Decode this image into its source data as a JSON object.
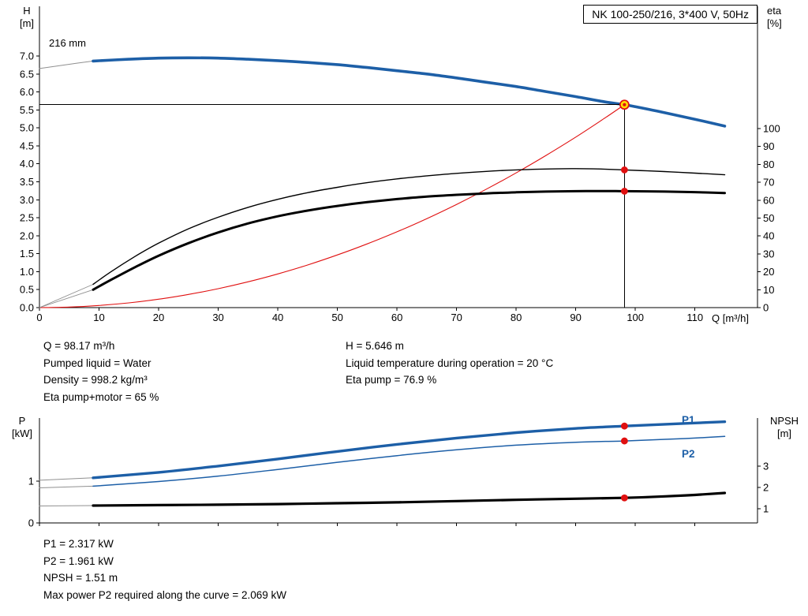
{
  "title_box": "NK 100-250/216, 3*400 V, 50Hz",
  "colors": {
    "blue": "#1d5fa7",
    "black": "#000000",
    "red": "#e01010",
    "gray": "#909090",
    "yellow": "#ffe000"
  },
  "results": {
    "col1": [
      "Q = 98.17 m³/h",
      "Pumped liquid = Water",
      "Density = 998.2 kg/m³",
      "Eta pump+motor = 65 %"
    ],
    "col2": [
      "H = 5.646 m",
      "Liquid temperature during operation = 20 °C",
      "Eta pump = 76.9 %"
    ],
    "power": [
      "P1 = 2.317 kW",
      "P2 = 1.961 kW",
      "NPSH = 1.51 m",
      "Max power P2 required along the curve = 2.069 kW"
    ]
  },
  "chart_data": [
    {
      "id": "head",
      "type": "line",
      "name": "hq-eta-chart",
      "impeller_label": "216 mm",
      "x_axis": {
        "label": "Q [m³/h]",
        "min": 0,
        "max": 120.5,
        "ticks": {
          "values": [
            0,
            10,
            20,
            30,
            40,
            50,
            60,
            70,
            80,
            90,
            100,
            110
          ],
          "labels": [
            "0",
            "10",
            "20",
            "30",
            "40",
            "50",
            "60",
            "70",
            "80",
            "90",
            "100",
            "110"
          ]
        }
      },
      "y_left": {
        "label": "H [m]",
        "label_lines": [
          "H",
          "[m]"
        ],
        "min": 0,
        "max": 7,
        "ticks": {
          "values": [
            7,
            6.5,
            6,
            5.5,
            5,
            4.5,
            4,
            3.5,
            3,
            2.5,
            2,
            1.5,
            1,
            0.5,
            0
          ],
          "labels": [
            "7.0",
            "6.5",
            "6.0",
            "5.5",
            "5.0",
            "4.5",
            "4.0",
            "3.5",
            "3.0",
            "2.5",
            "2.0",
            "1.5",
            "1.0",
            "0.5",
            "0.0"
          ]
        }
      },
      "y_right": {
        "label": "eta [%]",
        "label_lines": [
          "eta",
          "[%]"
        ],
        "min": 0,
        "max": 100,
        "ticks": {
          "values": [
            100,
            90,
            80,
            70,
            60,
            50,
            40,
            30,
            20,
            10,
            0
          ],
          "labels": [
            "100",
            "90",
            "80",
            "70",
            "60",
            "50",
            "40",
            "30",
            "20",
            "10",
            "0"
          ]
        }
      },
      "series": [
        {
          "name": "pump-curve-lead",
          "axis": "H",
          "color": "gray",
          "width": 1,
          "points": [
            [
              0,
              6.65
            ],
            [
              5,
              6.77
            ],
            [
              9,
              6.86
            ]
          ]
        },
        {
          "name": "system-curve",
          "axis": "H",
          "color": "red",
          "width": 1.1,
          "points": [
            [
              0,
              0
            ],
            [
              5,
              0.015
            ],
            [
              10,
              0.059
            ],
            [
              15,
              0.132
            ],
            [
              20,
              0.234
            ],
            [
              25,
              0.366
            ],
            [
              30,
              0.527
            ],
            [
              35,
              0.718
            ],
            [
              40,
              0.937
            ],
            [
              45,
              1.186
            ],
            [
              50,
              1.465
            ],
            [
              55,
              1.772
            ],
            [
              60,
              2.109
            ],
            [
              65,
              2.475
            ],
            [
              70,
              2.871
            ],
            [
              75,
              3.295
            ],
            [
              80,
              3.749
            ],
            [
              85,
              4.233
            ],
            [
              90,
              4.745
            ],
            [
              95,
              5.287
            ],
            [
              98.17,
              5.646
            ]
          ]
        },
        {
          "name": "eta-pump-lead",
          "axis": "eta",
          "color": "gray",
          "width": 0.9,
          "points": [
            [
              0,
              0
            ],
            [
              9,
              13
            ]
          ]
        },
        {
          "name": "eta-pump-motor-lead",
          "axis": "eta",
          "color": "gray",
          "width": 0.9,
          "points": [
            [
              0,
              0
            ],
            [
              9,
              10
            ]
          ]
        },
        {
          "name": "eta-pump-curve",
          "axis": "eta",
          "color": "black",
          "width": 1.4,
          "points": [
            [
              9,
              13
            ],
            [
              12,
              20
            ],
            [
              16,
              28.5
            ],
            [
              20,
              36
            ],
            [
              25,
              44
            ],
            [
              30,
              50.5
            ],
            [
              35,
              56
            ],
            [
              40,
              60.5
            ],
            [
              45,
              64.2
            ],
            [
              50,
              67.2
            ],
            [
              55,
              69.8
            ],
            [
              60,
              71.9
            ],
            [
              65,
              73.6
            ],
            [
              70,
              75.0
            ],
            [
              75,
              76.1
            ],
            [
              80,
              76.9
            ],
            [
              85,
              77.4
            ],
            [
              90,
              77.6
            ],
            [
              93,
              77.5
            ],
            [
              96,
              77.2
            ],
            [
              98.17,
              76.9
            ],
            [
              102,
              76.4
            ],
            [
              106,
              75.8
            ],
            [
              110,
              75.1
            ],
            [
              115,
              74.2
            ]
          ]
        },
        {
          "name": "eta-pump-motor-curve",
          "axis": "eta",
          "color": "black",
          "width": 3,
          "points": [
            [
              9,
              10
            ],
            [
              12,
              15.5
            ],
            [
              16,
              22.5
            ],
            [
              20,
              29
            ],
            [
              25,
              36
            ],
            [
              30,
              42
            ],
            [
              35,
              47
            ],
            [
              40,
              51
            ],
            [
              45,
              54.2
            ],
            [
              50,
              56.8
            ],
            [
              55,
              58.9
            ],
            [
              60,
              60.6
            ],
            [
              65,
              62.0
            ],
            [
              70,
              63.0
            ],
            [
              75,
              63.8
            ],
            [
              80,
              64.4
            ],
            [
              85,
              64.8
            ],
            [
              90,
              65.0
            ],
            [
              95,
              65.1
            ],
            [
              98.17,
              65.0
            ],
            [
              105,
              64.8
            ],
            [
              110,
              64.5
            ],
            [
              115,
              64.0
            ]
          ]
        },
        {
          "name": "pump-curve-216mm",
          "axis": "H",
          "color": "blue",
          "width": 3.6,
          "points": [
            [
              9,
              6.86
            ],
            [
              15,
              6.91
            ],
            [
              20,
              6.94
            ],
            [
              25,
              6.95
            ],
            [
              30,
              6.94
            ],
            [
              35,
              6.91
            ],
            [
              40,
              6.87
            ],
            [
              45,
              6.82
            ],
            [
              50,
              6.76
            ],
            [
              55,
              6.68
            ],
            [
              60,
              6.59
            ],
            [
              65,
              6.5
            ],
            [
              70,
              6.39
            ],
            [
              75,
              6.27
            ],
            [
              80,
              6.15
            ],
            [
              85,
              6.01
            ],
            [
              90,
              5.87
            ],
            [
              95,
              5.72
            ],
            [
              98.17,
              5.646
            ],
            [
              100,
              5.59
            ],
            [
              105,
              5.42
            ],
            [
              110,
              5.24
            ],
            [
              115,
              5.05
            ]
          ]
        }
      ],
      "operating_point": {
        "q": 98.17,
        "axis": "H",
        "v": 5.646
      },
      "dots": [
        {
          "q": 98.17,
          "axis": "eta",
          "v": 76.9
        },
        {
          "q": 98.17,
          "axis": "eta",
          "v": 65.0
        }
      ]
    },
    {
      "id": "power",
      "type": "line",
      "name": "power-npsh-chart",
      "x_axis": {
        "label": "",
        "min": 0,
        "max": 120.5,
        "ticks": {
          "values": [
            0,
            10,
            20,
            30,
            40,
            50,
            60,
            70,
            80,
            90,
            100,
            110
          ],
          "labels": []
        }
      },
      "y_left": {
        "label": "P [kW]",
        "label_lines": [
          "P",
          "[kW]"
        ],
        "ticks": {
          "values": [
            1,
            0
          ],
          "labels": [
            "1",
            "0"
          ]
        }
      },
      "y_right": {
        "label": "NPSH [m]",
        "label_lines": [
          "NPSH",
          "[m]"
        ],
        "ticks": {
          "values": [
            3,
            2,
            1
          ],
          "labels": [
            "3",
            "2",
            "1"
          ]
        }
      },
      "series": [
        {
          "name": "p1-lead",
          "axis": "P",
          "color": "gray",
          "width": 1,
          "points": [
            [
              0,
              1.02
            ],
            [
              9,
              1.08
            ]
          ]
        },
        {
          "name": "p2-lead",
          "axis": "P",
          "color": "gray",
          "width": 1,
          "points": [
            [
              0,
              0.84
            ],
            [
              9,
              0.88
            ]
          ]
        },
        {
          "name": "npsh-lead",
          "axis": "NPSH",
          "color": "gray",
          "width": 1,
          "points": [
            [
              0,
              1.13
            ],
            [
              9,
              1.15
            ]
          ]
        },
        {
          "name": "p2-curve",
          "axis": "P",
          "color": "blue",
          "width": 1.5,
          "points": [
            [
              9,
              0.88
            ],
            [
              20,
              0.99
            ],
            [
              30,
              1.12
            ],
            [
              40,
              1.28
            ],
            [
              50,
              1.45
            ],
            [
              60,
              1.61
            ],
            [
              70,
              1.75
            ],
            [
              80,
              1.86
            ],
            [
              90,
              1.93
            ],
            [
              98.17,
              1.961
            ],
            [
              105,
              2.0
            ],
            [
              110,
              2.03
            ],
            [
              115,
              2.07
            ]
          ]
        },
        {
          "name": "p1-curve",
          "axis": "P",
          "color": "blue",
          "width": 3.4,
          "points": [
            [
              9,
              1.08
            ],
            [
              20,
              1.21
            ],
            [
              30,
              1.36
            ],
            [
              40,
              1.53
            ],
            [
              50,
              1.71
            ],
            [
              60,
              1.88
            ],
            [
              70,
              2.03
            ],
            [
              80,
              2.16
            ],
            [
              90,
              2.26
            ],
            [
              98.17,
              2.317
            ],
            [
              105,
              2.36
            ],
            [
              110,
              2.39
            ],
            [
              115,
              2.42
            ]
          ]
        },
        {
          "name": "npsh-curve",
          "axis": "NPSH",
          "color": "black",
          "width": 3.2,
          "points": [
            [
              9,
              1.15
            ],
            [
              20,
              1.17
            ],
            [
              30,
              1.19
            ],
            [
              40,
              1.22
            ],
            [
              50,
              1.26
            ],
            [
              60,
              1.3
            ],
            [
              70,
              1.36
            ],
            [
              80,
              1.42
            ],
            [
              90,
              1.47
            ],
            [
              98.17,
              1.51
            ],
            [
              105,
              1.58
            ],
            [
              110,
              1.65
            ],
            [
              115,
              1.74
            ]
          ]
        }
      ],
      "dots": [
        {
          "q": 98.17,
          "axis": "P",
          "v": 2.317
        },
        {
          "q": 98.17,
          "axis": "P",
          "v": 1.961
        },
        {
          "q": 98.17,
          "axis": "NPSH",
          "v": 1.51
        }
      ],
      "curve_labels": [
        {
          "text": "P1"
        },
        {
          "text": "P2"
        }
      ]
    }
  ]
}
